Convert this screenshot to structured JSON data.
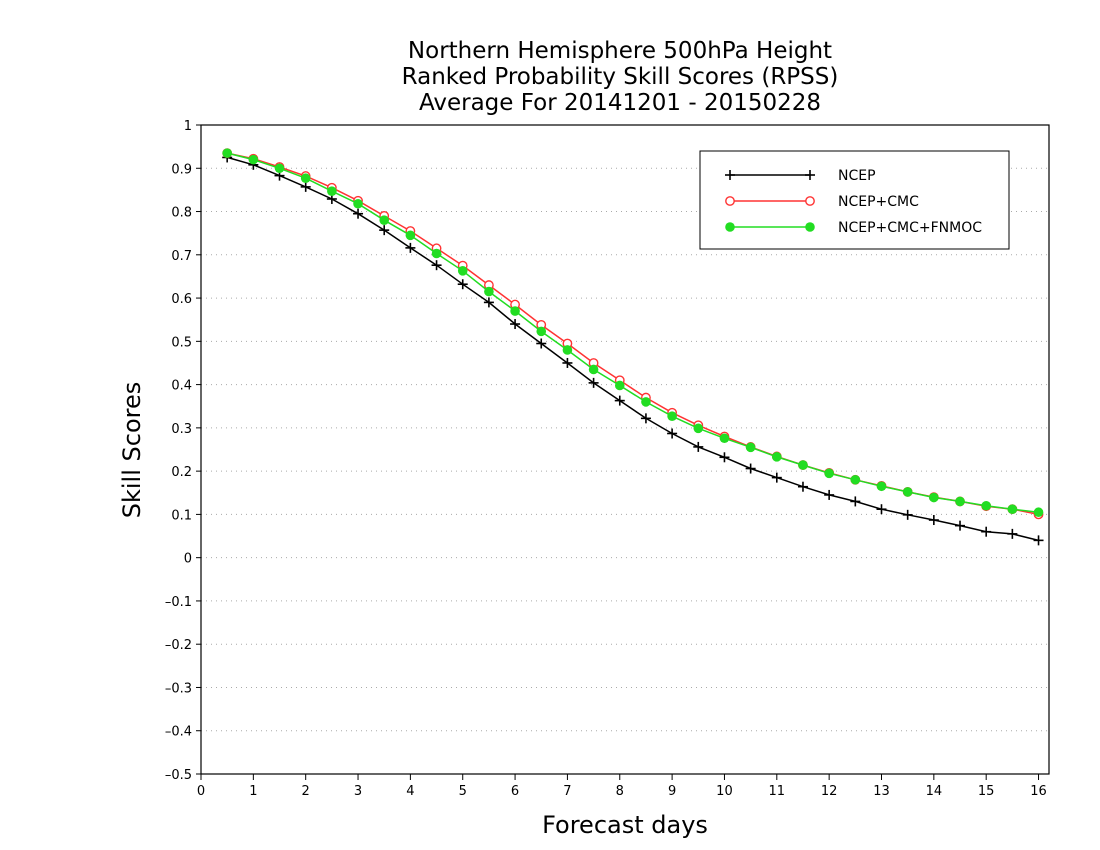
{
  "chart_data": {
    "type": "line",
    "title": [
      "Northern Hemisphere 500hPa Height",
      "Ranked Probability Skill Scores (RPSS)",
      "Average For 20141201 - 20150228"
    ],
    "xlabel": "Forecast days",
    "ylabel": "Skill Scores",
    "xlim": [
      0,
      16.2
    ],
    "ylim": [
      -0.5,
      1
    ],
    "xticks": [
      0,
      1,
      2,
      3,
      4,
      5,
      6,
      7,
      8,
      9,
      10,
      11,
      12,
      13,
      14,
      15,
      16
    ],
    "yticks": [
      -0.5,
      -0.4,
      -0.3,
      -0.2,
      -0.1,
      0,
      0.1,
      0.2,
      0.3,
      0.4,
      0.5,
      0.6,
      0.7,
      0.8,
      0.9,
      1
    ],
    "ytick_labels": [
      "–0.5",
      "–0.4",
      "–0.3",
      "–0.2",
      "–0.1",
      "0",
      "0.1",
      "0.2",
      "0.3",
      "0.4",
      "0.5",
      "0.6",
      "0.7",
      "0.8",
      "0.9",
      "1"
    ],
    "grid": "horizontal-dotted",
    "legend_position": "top-right",
    "x": [
      0.5,
      1,
      1.5,
      2,
      2.5,
      3,
      3.5,
      4,
      4.5,
      5,
      5.5,
      6,
      6.5,
      7,
      7.5,
      8,
      8.5,
      9,
      9.5,
      10,
      10.5,
      11,
      11.5,
      12,
      12.5,
      13,
      13.5,
      14,
      14.5,
      15,
      15.5,
      16
    ],
    "series": [
      {
        "name": "NCEP",
        "color": "#000000",
        "marker": "plus",
        "values": [
          0.925,
          0.908,
          0.883,
          0.857,
          0.829,
          0.795,
          0.757,
          0.716,
          0.676,
          0.632,
          0.59,
          0.54,
          0.495,
          0.45,
          0.404,
          0.363,
          0.322,
          0.287,
          0.256,
          0.232,
          0.206,
          0.185,
          0.164,
          0.145,
          0.13,
          0.112,
          0.099,
          0.087,
          0.074,
          0.06,
          0.055,
          0.04
        ]
      },
      {
        "name": "NCEP+CMC",
        "color": "#ff3333",
        "marker": "open-circle",
        "values": [
          0.935,
          0.922,
          0.903,
          0.882,
          0.855,
          0.825,
          0.79,
          0.755,
          0.715,
          0.675,
          0.63,
          0.585,
          0.538,
          0.495,
          0.45,
          0.41,
          0.37,
          0.335,
          0.306,
          0.28,
          0.256,
          0.234,
          0.214,
          0.196,
          0.18,
          0.166,
          0.152,
          0.14,
          0.13,
          0.119,
          0.112,
          0.1
        ]
      },
      {
        "name": "NCEP+CMC+FNMOC",
        "color": "#22dd22",
        "marker": "filled-circle",
        "values": [
          0.935,
          0.92,
          0.9,
          0.877,
          0.847,
          0.818,
          0.78,
          0.745,
          0.703,
          0.663,
          0.615,
          0.57,
          0.523,
          0.48,
          0.435,
          0.398,
          0.36,
          0.327,
          0.299,
          0.276,
          0.255,
          0.233,
          0.214,
          0.195,
          0.18,
          0.165,
          0.152,
          0.139,
          0.13,
          0.12,
          0.112,
          0.105
        ]
      }
    ]
  }
}
